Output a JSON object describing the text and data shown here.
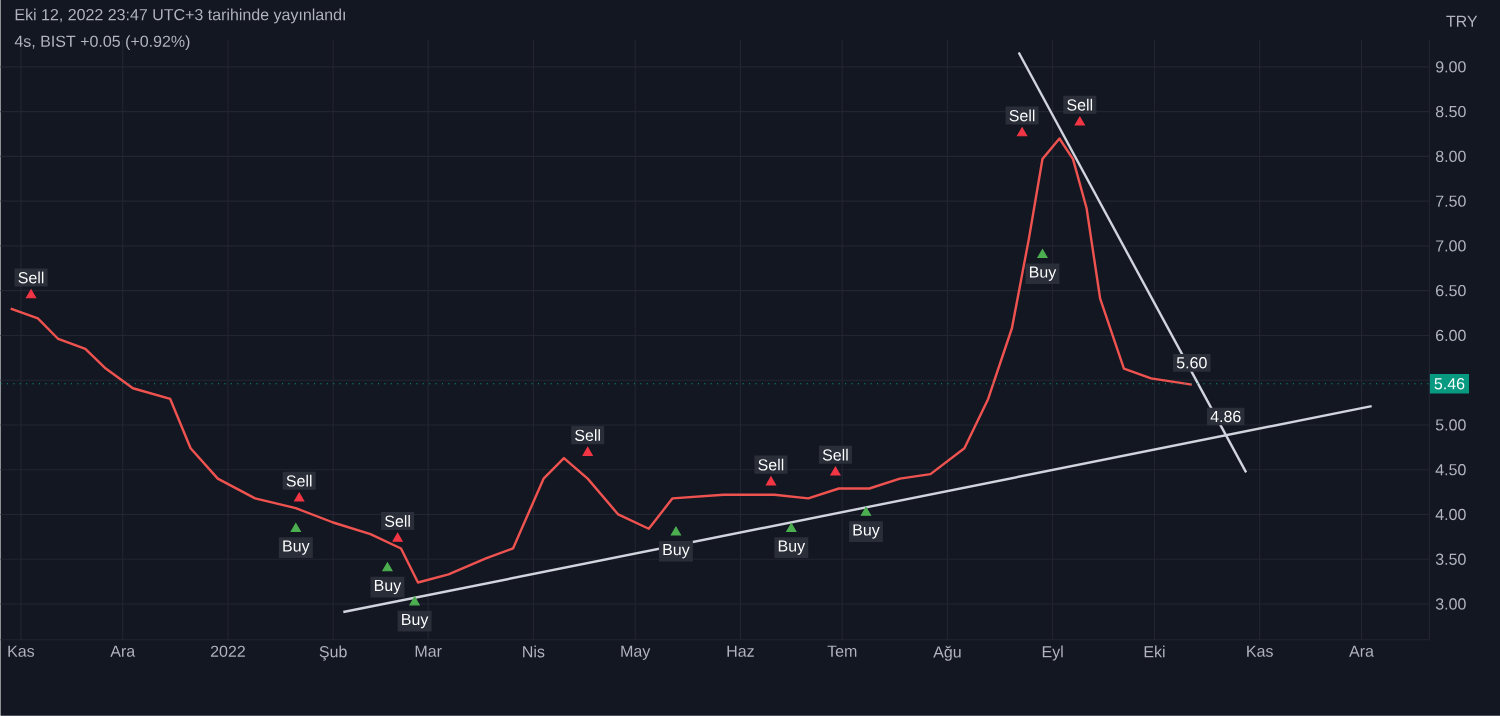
{
  "chart_data": {
    "type": "line",
    "title": "Eki 12, 2022 23:47 UTC+3 tarihinde yayınlandı",
    "subtitle": "4s, BIST +0.05 (+0.92%)",
    "ylabel": "TRY",
    "xlim": [
      "2021-10-26",
      "2022-12-21"
    ],
    "ylim": [
      2.6,
      9.3
    ],
    "xticks": [
      {
        "value": "2021-11-01",
        "label": "Kas"
      },
      {
        "value": "2021-12-01",
        "label": "Ara"
      },
      {
        "value": "2022-01-01",
        "label": "2022"
      },
      {
        "value": "2022-02-01",
        "label": "Şub"
      },
      {
        "value": "2022-03-01",
        "label": "Mar"
      },
      {
        "value": "2022-04-01",
        "label": "Nis"
      },
      {
        "value": "2022-05-01",
        "label": "May"
      },
      {
        "value": "2022-06-01",
        "label": "Haz"
      },
      {
        "value": "2022-07-01",
        "label": "Tem"
      },
      {
        "value": "2022-08-01",
        "label": "Ağu"
      },
      {
        "value": "2022-09-01",
        "label": "Eyl"
      },
      {
        "value": "2022-10-01",
        "label": "Eki"
      },
      {
        "value": "2022-11-01",
        "label": "Kas"
      },
      {
        "value": "2022-12-01",
        "label": "Ara"
      }
    ],
    "yticks": [
      {
        "value": 3,
        "label": "3.00"
      },
      {
        "value": 3.5,
        "label": "3.50"
      },
      {
        "value": 4,
        "label": "4.00"
      },
      {
        "value": 4.5,
        "label": "4.50"
      },
      {
        "value": 5,
        "label": "5.00"
      },
      {
        "value": 5.5,
        "label": null
      },
      {
        "value": 6,
        "label": "6.00"
      },
      {
        "value": 6.5,
        "label": "6.50"
      },
      {
        "value": 7,
        "label": "7.00"
      },
      {
        "value": 7.5,
        "label": "7.50"
      },
      {
        "value": 8,
        "label": "8.00"
      },
      {
        "value": 8.5,
        "label": "8.50"
      },
      {
        "value": 9,
        "label": "9.00"
      }
    ],
    "grid": true,
    "series": [
      {
        "color": "#ef5350",
        "x": [
          "2021-10-29",
          "2021-11-06",
          "2021-11-12",
          "2021-11-20",
          "2021-11-26",
          "2021-12-04",
          "2021-12-15",
          "2021-12-21",
          "2021-12-29",
          "2022-01-09",
          "2022-01-21",
          "2022-02-01",
          "2022-02-12",
          "2022-02-21",
          "2022-02-26",
          "2022-03-07",
          "2022-03-18",
          "2022-03-26",
          "2022-04-04",
          "2022-04-10",
          "2022-04-17",
          "2022-04-26",
          "2022-05-05",
          "2022-05-12",
          "2022-05-27",
          "2022-06-11",
          "2022-06-21",
          "2022-06-30",
          "2022-07-09",
          "2022-07-18",
          "2022-07-27",
          "2022-08-06",
          "2022-08-13",
          "2022-08-20",
          "2022-08-25",
          "2022-08-29",
          "2022-09-03",
          "2022-09-07",
          "2022-09-11",
          "2022-09-15",
          "2022-09-22",
          "2022-09-30",
          "2022-10-12"
        ],
        "values": [
          6.3,
          6.19,
          5.96,
          5.85,
          5.63,
          5.41,
          5.29,
          4.74,
          4.4,
          4.18,
          4.07,
          3.91,
          3.78,
          3.62,
          3.24,
          3.33,
          3.51,
          3.62,
          4.4,
          4.63,
          4.4,
          4.0,
          3.84,
          4.18,
          4.22,
          4.22,
          4.18,
          4.29,
          4.29,
          4.4,
          4.45,
          4.74,
          5.29,
          6.08,
          7.08,
          7.97,
          8.2,
          7.97,
          7.42,
          6.41,
          5.63,
          5.52,
          5.45
        ]
      },
      {
        "color": "#d1d4dc",
        "x": [
          "2022-02-04",
          "2022-12-04"
        ],
        "values": [
          2.91,
          5.21
        ]
      },
      {
        "color": "#d1d4dc",
        "x": [
          "2022-08-22",
          "2022-10-28"
        ],
        "values": [
          9.16,
          4.47
        ]
      },
      {
        "type": "scatter",
        "marker": "triangle",
        "color": "#f23645",
        "x": [
          "2021-11-04",
          "2022-01-22",
          "2022-02-20",
          "2022-04-17",
          "2022-06-10",
          "2022-06-29",
          "2022-08-23",
          "2022-09-09"
        ],
        "values": [
          6.45,
          4.18,
          3.73,
          4.69,
          4.36,
          4.47,
          8.26,
          8.38
        ]
      },
      {
        "type": "scatter",
        "marker": "triangle",
        "color": "#4caf50",
        "x": [
          "2022-01-21",
          "2022-02-17",
          "2022-02-25",
          "2022-05-13",
          "2022-06-16",
          "2022-07-08",
          "2022-08-29"
        ],
        "values": [
          3.84,
          3.4,
          3.02,
          3.8,
          3.84,
          4.02,
          6.9
        ]
      }
    ],
    "ref_lines": [
      {
        "axis": "y",
        "value": 5.46,
        "label": "5.46",
        "color": "#089981",
        "line_style": "dotted"
      }
    ],
    "annotations": [
      {
        "text": "Sell",
        "x": "2021-11-04",
        "y": 6.45
      },
      {
        "text": "Sell",
        "x": "2022-01-22",
        "y": 4.18
      },
      {
        "text": "Buy",
        "x": "2022-01-21",
        "y": 3.84
      },
      {
        "text": "Sell",
        "x": "2022-02-20",
        "y": 3.73
      },
      {
        "text": "Buy",
        "x": "2022-02-17",
        "y": 3.4
      },
      {
        "text": "Buy",
        "x": "2022-02-25",
        "y": 3.02
      },
      {
        "text": "Sell",
        "x": "2022-04-17",
        "y": 4.69
      },
      {
        "text": "Buy",
        "x": "2022-05-13",
        "y": 3.8
      },
      {
        "text": "Sell",
        "x": "2022-06-10",
        "y": 4.36
      },
      {
        "text": "Buy",
        "x": "2022-06-16",
        "y": 3.84
      },
      {
        "text": "Sell",
        "x": "2022-06-29",
        "y": 4.47
      },
      {
        "text": "Buy",
        "x": "2022-07-08",
        "y": 4.02
      },
      {
        "text": "Sell",
        "x": "2022-08-23",
        "y": 8.26
      },
      {
        "text": "Sell",
        "x": "2022-09-09",
        "y": 8.38
      },
      {
        "text": "Buy",
        "x": "2022-08-29",
        "y": 6.9
      },
      {
        "text": "5.60",
        "x": "2022-10-12",
        "y": 5.5
      },
      {
        "text": "4.86",
        "x": "2022-10-22",
        "y": 4.9
      }
    ]
  }
}
